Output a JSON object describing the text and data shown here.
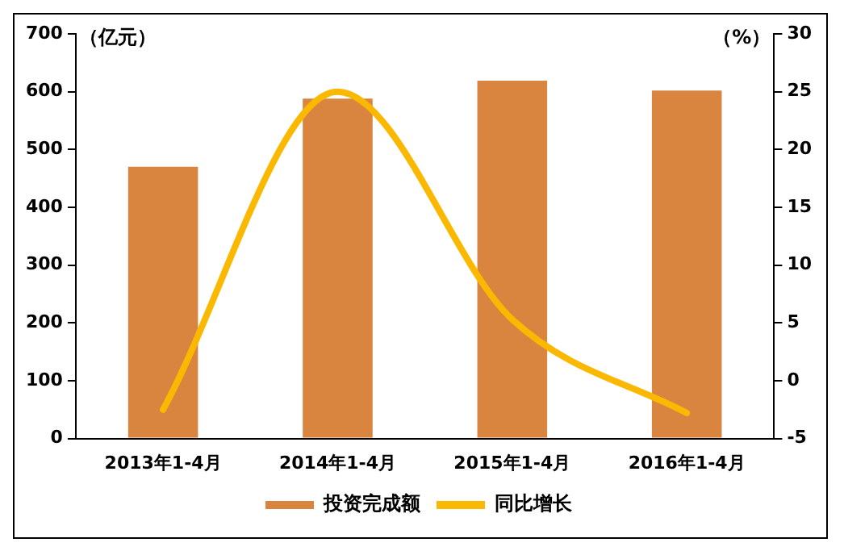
{
  "chart_data": {
    "type": "bar",
    "ylabel": "（亿元）",
    "y2label": "（%）",
    "categories": [
      "2013年1-4月",
      "2014年1-4月",
      "2015年1-4月",
      "2016年1-4月"
    ],
    "series": [
      {
        "name": "投资完成额",
        "color": "#d9843f",
        "values": [
          470,
          588,
          619,
          602
        ]
      },
      {
        "name": "同比增长",
        "type": "line",
        "axis": "y2",
        "color": "#fbb800",
        "values": [
          -2.5,
          25,
          5.3,
          -2.8
        ]
      }
    ],
    "ylim": [
      0,
      700
    ],
    "yticks": [
      0,
      100,
      200,
      300,
      400,
      500,
      600,
      700
    ],
    "y2lim": [
      -5,
      30
    ],
    "y2ticks": [
      -5,
      0,
      5,
      10,
      15,
      20,
      25,
      30
    ],
    "grid": false,
    "legend": "bottom",
    "marker": "none",
    "line_style": "solid"
  }
}
